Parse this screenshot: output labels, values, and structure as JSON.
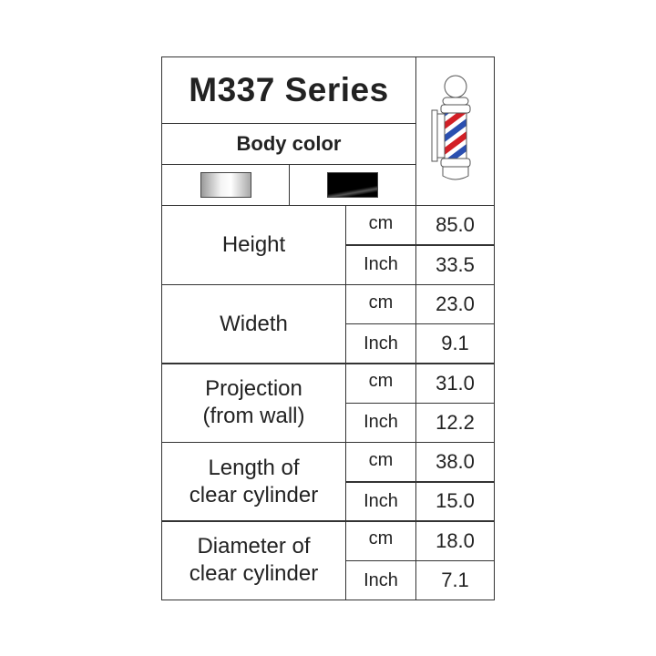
{
  "title": "M337 Series",
  "body_color_label": "Body color",
  "body_colors": [
    {
      "name": "silver",
      "hex": "#d8d8d8"
    },
    {
      "name": "black",
      "hex": "#000000"
    }
  ],
  "pole_colors": {
    "red": "#d21f26",
    "blue": "#2a4fb0"
  },
  "specs": [
    {
      "label_lines": [
        "Height"
      ],
      "rows": [
        {
          "unit": "cm",
          "value": "85.0"
        },
        {
          "unit": "Inch",
          "value": "33.5"
        }
      ]
    },
    {
      "label_lines": [
        "Wideth"
      ],
      "rows": [
        {
          "unit": "cm",
          "value": "23.0"
        },
        {
          "unit": "Inch",
          "value": "9.1"
        }
      ]
    },
    {
      "label_lines": [
        "Projection",
        "(from wall)"
      ],
      "rows": [
        {
          "unit": "cm",
          "value": "31.0"
        },
        {
          "unit": "Inch",
          "value": "12.2"
        }
      ]
    },
    {
      "label_lines": [
        "Length of",
        "clear cylinder"
      ],
      "rows": [
        {
          "unit": "cm",
          "value": "38.0"
        },
        {
          "unit": "Inch",
          "value": "15.0"
        }
      ]
    },
    {
      "label_lines": [
        "Diameter of",
        "clear cylinder"
      ],
      "rows": [
        {
          "unit": "cm",
          "value": "18.0"
        },
        {
          "unit": "Inch",
          "value": "7.1"
        }
      ]
    }
  ]
}
